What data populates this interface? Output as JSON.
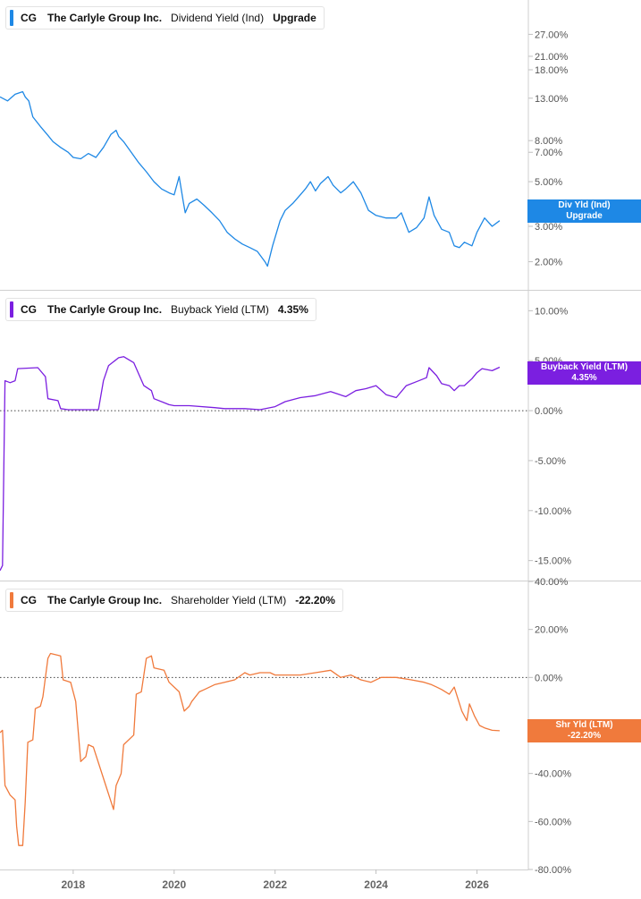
{
  "colors": {
    "dividend": "#1e88e5",
    "buyback": "#7b1fe0",
    "shareholder": "#f07a3c",
    "grid": "#d8d8d8",
    "axis_text": "#555555"
  },
  "x_axis": {
    "ticks": [
      "2018",
      "2020",
      "2022",
      "2024",
      "2026"
    ],
    "range": [
      2016.55,
      2027.0
    ]
  },
  "chart_data": [
    {
      "type": "line",
      "scale": "log",
      "label": {
        "ticker": "CG",
        "company": "The Carlyle Group Inc.",
        "metric": "Dividend Yield (Ind)",
        "value": "Upgrade"
      },
      "badge": {
        "line1": "Div Yld (Ind)",
        "line2": "Upgrade"
      },
      "y_ticks": [
        "27.00%",
        "21.00%",
        "18.00%",
        "13.00%",
        "8.00%",
        "7.00%",
        "5.00%",
        "3.00%",
        "2.00%"
      ],
      "y_tick_values": [
        27,
        21,
        18,
        13,
        8,
        7,
        5,
        3,
        2
      ],
      "ylim": [
        1.45,
        40
      ],
      "series": [
        {
          "x": [
            2016.55,
            2016.7,
            2016.85,
            2017.0,
            2017.05,
            2017.12,
            2017.2,
            2017.35,
            2017.5,
            2017.6,
            2017.75,
            2017.9,
            2018.0,
            2018.15,
            2018.3,
            2018.45,
            2018.6,
            2018.75,
            2018.85,
            2018.9,
            2019.0,
            2019.15,
            2019.3,
            2019.45,
            2019.6,
            2019.75,
            2019.9,
            2020.0,
            2020.1,
            2020.18,
            2020.22,
            2020.3,
            2020.45,
            2020.6,
            2020.75,
            2020.9,
            2021.05,
            2021.2,
            2021.35,
            2021.5,
            2021.65,
            2021.8,
            2021.85,
            2021.95,
            2022.1,
            2022.2,
            2022.35,
            2022.5,
            2022.6,
            2022.7,
            2022.8,
            2022.9,
            2023.05,
            2023.15,
            2023.3,
            2023.4,
            2023.55,
            2023.7,
            2023.85,
            2024.0,
            2024.2,
            2024.4,
            2024.5,
            2024.65,
            2024.8,
            2024.95,
            2025.05,
            2025.15,
            2025.3,
            2025.45,
            2025.55,
            2025.65,
            2025.75,
            2025.9,
            2026.0,
            2026.15,
            2026.3,
            2026.45
          ],
          "values": [
            13.2,
            12.6,
            13.6,
            14.0,
            13.2,
            12.6,
            10.5,
            9.4,
            8.5,
            7.9,
            7.4,
            7.0,
            6.6,
            6.5,
            6.9,
            6.6,
            7.4,
            8.6,
            9.0,
            8.4,
            7.9,
            7.0,
            6.2,
            5.6,
            5.0,
            4.6,
            4.4,
            4.3,
            5.3,
            4.0,
            3.5,
            3.9,
            4.1,
            3.8,
            3.5,
            3.2,
            2.8,
            2.6,
            2.45,
            2.35,
            2.25,
            2.0,
            1.9,
            2.4,
            3.2,
            3.6,
            3.9,
            4.3,
            4.6,
            5.0,
            4.5,
            4.9,
            5.3,
            4.8,
            4.4,
            4.6,
            5.0,
            4.4,
            3.6,
            3.4,
            3.3,
            3.3,
            3.5,
            2.8,
            2.95,
            3.3,
            4.2,
            3.4,
            2.9,
            2.8,
            2.4,
            2.35,
            2.5,
            2.4,
            2.8,
            3.3,
            3.0,
            3.2
          ]
        }
      ]
    },
    {
      "type": "line",
      "scale": "linear",
      "label": {
        "ticker": "CG",
        "company": "The Carlyle Group Inc.",
        "metric": "Buyback Yield (LTM)",
        "value": "4.35%"
      },
      "badge": {
        "line1": "Buyback Yield (LTM)",
        "line2": "4.35%"
      },
      "y_ticks": [
        "10.00%",
        "5.00%",
        "0.00%",
        "-5.00%",
        "-10.00%",
        "-15.00%"
      ],
      "y_tick_values": [
        10,
        5,
        0,
        -5,
        -10,
        -15
      ],
      "ylim": [
        -17,
        12
      ],
      "zero_line": true,
      "series": [
        {
          "x": [
            2016.55,
            2016.6,
            2016.65,
            2016.7,
            2016.75,
            2016.85,
            2016.9,
            2017.3,
            2017.45,
            2017.5,
            2017.7,
            2017.75,
            2017.9,
            2018.0,
            2018.2,
            2018.3,
            2018.5,
            2018.6,
            2018.7,
            2018.9,
            2019.0,
            2019.2,
            2019.4,
            2019.55,
            2019.6,
            2019.8,
            2019.9,
            2020.0,
            2020.3,
            2020.8,
            2021.0,
            2021.4,
            2021.7,
            2022.0,
            2022.2,
            2022.5,
            2022.8,
            2023.1,
            2023.4,
            2023.6,
            2023.8,
            2024.0,
            2024.2,
            2024.4,
            2024.6,
            2024.8,
            2025.0,
            2025.05,
            2025.2,
            2025.3,
            2025.45,
            2025.55,
            2025.65,
            2025.75,
            2025.9,
            2026.0,
            2026.1,
            2026.3,
            2026.45
          ],
          "values": [
            -16.0,
            -15.5,
            3.0,
            2.9,
            2.8,
            3.0,
            4.2,
            4.3,
            3.4,
            1.2,
            1.0,
            0.2,
            0.1,
            0.1,
            0.1,
            0.1,
            0.1,
            3.0,
            4.5,
            5.3,
            5.4,
            4.8,
            2.5,
            2.0,
            1.2,
            0.8,
            0.6,
            0.5,
            0.5,
            0.3,
            0.2,
            0.2,
            0.1,
            0.4,
            0.9,
            1.3,
            1.5,
            1.9,
            1.4,
            2.0,
            2.2,
            2.5,
            1.6,
            1.3,
            2.5,
            2.9,
            3.3,
            4.3,
            3.5,
            2.7,
            2.5,
            2.0,
            2.5,
            2.5,
            3.2,
            3.8,
            4.2,
            4.0,
            4.35
          ]
        }
      ]
    },
    {
      "type": "line",
      "scale": "linear",
      "label": {
        "ticker": "CG",
        "company": "The Carlyle Group Inc.",
        "metric": "Shareholder Yield (LTM)",
        "value": "-22.20%"
      },
      "badge": {
        "line1": "Shr Yld (LTM)",
        "line2": "-22.20%"
      },
      "y_ticks": [
        "40.00%",
        "20.00%",
        "0.00%",
        "-20.00%",
        "-40.00%",
        "-60.00%",
        "-80.00%"
      ],
      "y_tick_values": [
        40,
        20,
        0,
        -20,
        -40,
        -60,
        -80
      ],
      "ylim": [
        -80,
        40
      ],
      "zero_line": true,
      "series": [
        {
          "x": [
            2016.55,
            2016.6,
            2016.65,
            2016.75,
            2016.85,
            2016.88,
            2016.92,
            2017.0,
            2017.05,
            2017.1,
            2017.2,
            2017.25,
            2017.35,
            2017.4,
            2017.5,
            2017.55,
            2017.75,
            2017.8,
            2017.95,
            2018.05,
            2018.15,
            2018.25,
            2018.3,
            2018.4,
            2018.6,
            2018.8,
            2018.85,
            2018.95,
            2019.0,
            2019.2,
            2019.25,
            2019.35,
            2019.45,
            2019.55,
            2019.6,
            2019.8,
            2019.9,
            2020.1,
            2020.2,
            2020.3,
            2020.35,
            2020.5,
            2020.6,
            2020.8,
            2021.0,
            2021.2,
            2021.4,
            2021.5,
            2021.7,
            2021.9,
            2022.0,
            2022.2,
            2022.5,
            2022.8,
            2023.1,
            2023.3,
            2023.5,
            2023.7,
            2023.9,
            2024.1,
            2024.4,
            2024.7,
            2024.95,
            2025.1,
            2025.2,
            2025.3,
            2025.45,
            2025.55,
            2025.7,
            2025.8,
            2025.85,
            2025.95,
            2026.05,
            2026.15,
            2026.3,
            2026.45
          ],
          "values": [
            -23,
            -22,
            -45,
            -49,
            -51,
            -62,
            -70,
            -70,
            -52,
            -27,
            -26,
            -13,
            -12,
            -8,
            8,
            10,
            9,
            -1,
            -2,
            -10,
            -35,
            -33,
            -28,
            -29,
            -42,
            -55,
            -45,
            -40,
            -28,
            -24,
            -7,
            -6,
            8,
            9,
            4,
            3,
            -2,
            -6,
            -14,
            -12,
            -10,
            -6,
            -5,
            -3,
            -2,
            -1,
            2,
            1,
            2,
            2,
            1,
            1,
            1,
            2,
            3,
            0,
            1,
            -1,
            -2,
            0,
            0,
            -1,
            -2,
            -3,
            -4,
            -5,
            -7,
            -4,
            -14,
            -18,
            -11,
            -16,
            -20,
            -21,
            -22,
            -22.2
          ]
        }
      ]
    }
  ]
}
